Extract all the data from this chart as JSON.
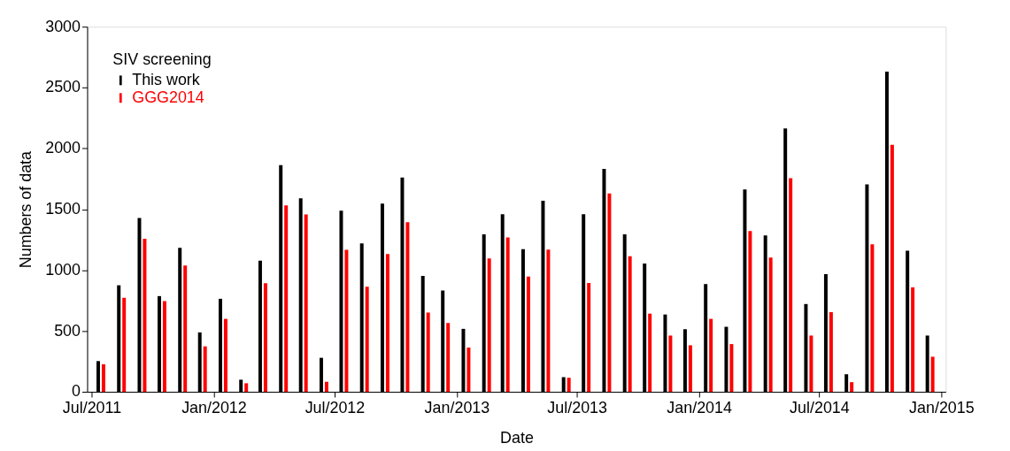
{
  "chart_data": {
    "type": "bar",
    "xlabel": "Date",
    "ylabel": "Numbers of data",
    "legend_title": "SIV screening",
    "legend": "top left",
    "grid": false,
    "x": [
      "2011-07-15",
      "2011-08-15",
      "2011-09-15",
      "2011-10-15",
      "2011-11-15",
      "2011-12-15",
      "2012-01-15",
      "2012-02-15",
      "2012-03-15",
      "2012-04-15",
      "2012-05-15",
      "2012-06-15",
      "2012-07-15",
      "2012-08-15",
      "2012-09-15",
      "2012-10-15",
      "2012-11-15",
      "2012-12-15",
      "2013-01-15",
      "2013-02-15",
      "2013-03-15",
      "2013-04-15",
      "2013-05-15",
      "2013-06-15",
      "2013-07-15",
      "2013-08-15",
      "2013-09-15",
      "2013-10-15",
      "2013-11-15",
      "2013-12-15",
      "2014-01-15",
      "2014-02-15",
      "2014-03-15",
      "2014-04-15",
      "2014-05-15",
      "2014-06-15",
      "2014-07-15",
      "2014-08-15",
      "2014-09-15",
      "2014-10-15",
      "2014-11-15",
      "2014-12-15"
    ],
    "series": [
      {
        "name": "This work",
        "color": "#000000",
        "values": [
          252,
          875,
          1428,
          786,
          1183,
          488,
          764,
          99,
          1077,
          1863,
          1589,
          279,
          1488,
          1219,
          1546,
          1760,
          952,
          832,
          517,
          1293,
          1459,
          1171,
          1570,
          120,
          1459,
          1832,
          1293,
          1053,
          635,
          514,
          885,
          534,
          1663,
          1284,
          2163,
          721,
          966,
          144,
          1704,
          2630,
          1159,
          462
        ]
      },
      {
        "name": "GGG2014",
        "color": "#ff0000",
        "values": [
          226,
          772,
          1257,
          745,
          1038,
          373,
          599,
          70,
          892,
          1531,
          1457,
          82,
          1166,
          863,
          1132,
          1394,
          651,
          565,
          363,
          1096,
          1269,
          947,
          1168,
          115,
          894,
          1630,
          1113,
          642,
          462,
          382,
          599,
          392,
          1320,
          1103,
          1755,
          462,
          654,
          79,
          1212,
          2029,
          858,
          288
        ]
      }
    ],
    "xlim": [
      "2011-07-01",
      "2015-01-01"
    ],
    "xticks": [
      {
        "value": "2011-07-01",
        "label": "Jul/2011"
      },
      {
        "value": "2012-01-01",
        "label": "Jan/2012"
      },
      {
        "value": "2012-07-01",
        "label": "Jul/2012"
      },
      {
        "value": "2013-01-01",
        "label": "Jan/2013"
      },
      {
        "value": "2013-07-01",
        "label": "Jul/2013"
      },
      {
        "value": "2014-01-01",
        "label": "Jan/2014"
      },
      {
        "value": "2014-07-01",
        "label": "Jul/2014"
      },
      {
        "value": "2015-01-01",
        "label": "Jan/2015"
      }
    ],
    "ylim": [
      0,
      3000
    ],
    "yticks": [
      0,
      500,
      1000,
      1500,
      2000,
      2500,
      3000
    ]
  }
}
